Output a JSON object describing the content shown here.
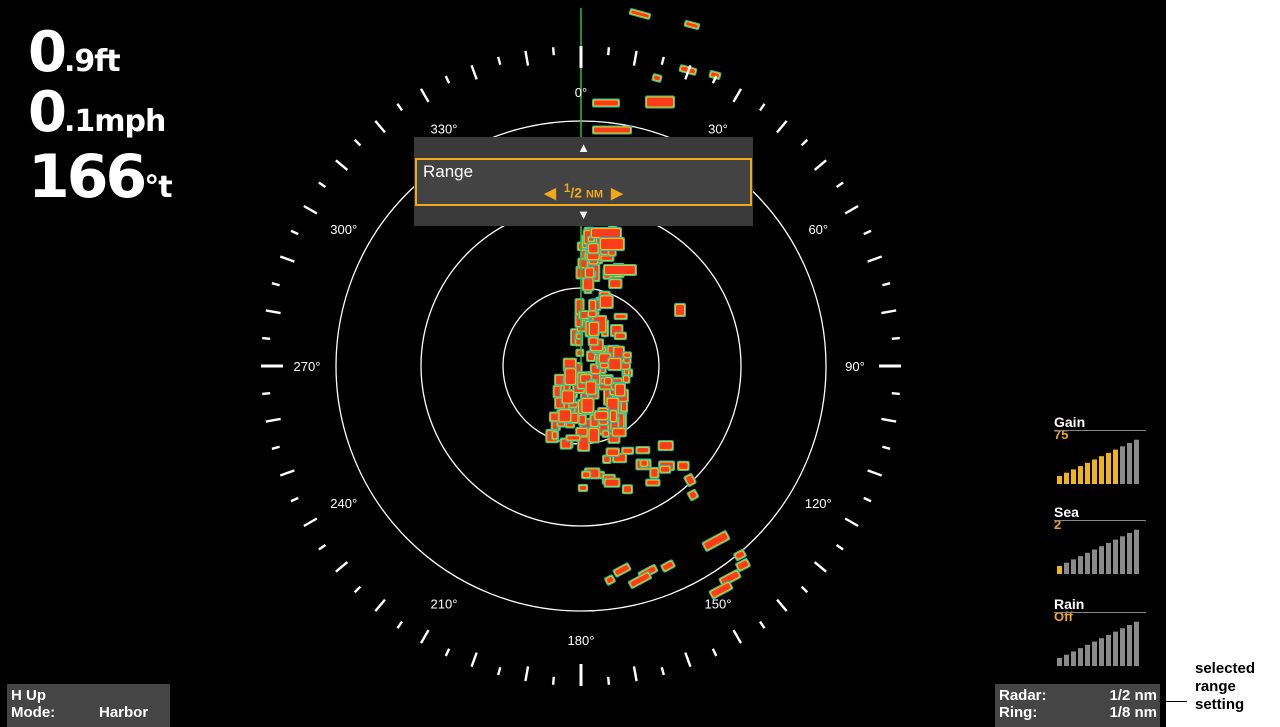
{
  "readouts": {
    "depth": {
      "value": "0",
      "unit": ".9ft"
    },
    "speed": {
      "value": "0",
      "unit": ".1mph"
    },
    "heading": {
      "value": "166",
      "unit": "°t"
    }
  },
  "compass": {
    "labels": [
      "0°",
      "30°",
      "60°",
      "90°",
      "120°",
      "150°",
      "180°",
      "210°",
      "240°",
      "270°",
      "300°",
      "330°"
    ],
    "ring_color": "#ffffff",
    "heading_line_color": "#2fbf3f"
  },
  "range_menu": {
    "label": "Range",
    "value_num": "1",
    "value_den": "2",
    "value_unit": "NM",
    "up_icon": "triangle-up-icon",
    "down_icon": "triangle-down-icon",
    "left_icon": "chevron-left-icon",
    "right_icon": "chevron-right-icon",
    "accent": "#f0a91a"
  },
  "meters": {
    "gain": {
      "label": "Gain",
      "value": "75",
      "level": 0.75
    },
    "sea": {
      "label": "Sea",
      "value": "2",
      "level": 0.02
    },
    "rain": {
      "label": "Rain",
      "value": "Off",
      "level": 0
    }
  },
  "status_left": {
    "line1": "H Up",
    "mode_label": "Mode:",
    "mode_value": "Harbor"
  },
  "status_right": {
    "radar_label": "Radar:",
    "radar_value": "1/2 nm",
    "ring_label": "Ring:",
    "ring_value": "1/8 nm"
  },
  "callout": {
    "lines": [
      "selected",
      "range",
      "setting"
    ]
  },
  "colors": {
    "echo_strong": "#ff3b1e",
    "echo_mid": "#f5c400",
    "echo_weak": "#19c5b8",
    "background": "#000000",
    "meter_active": "#f0b51c",
    "meter_inactive": "#8a8a8a"
  }
}
